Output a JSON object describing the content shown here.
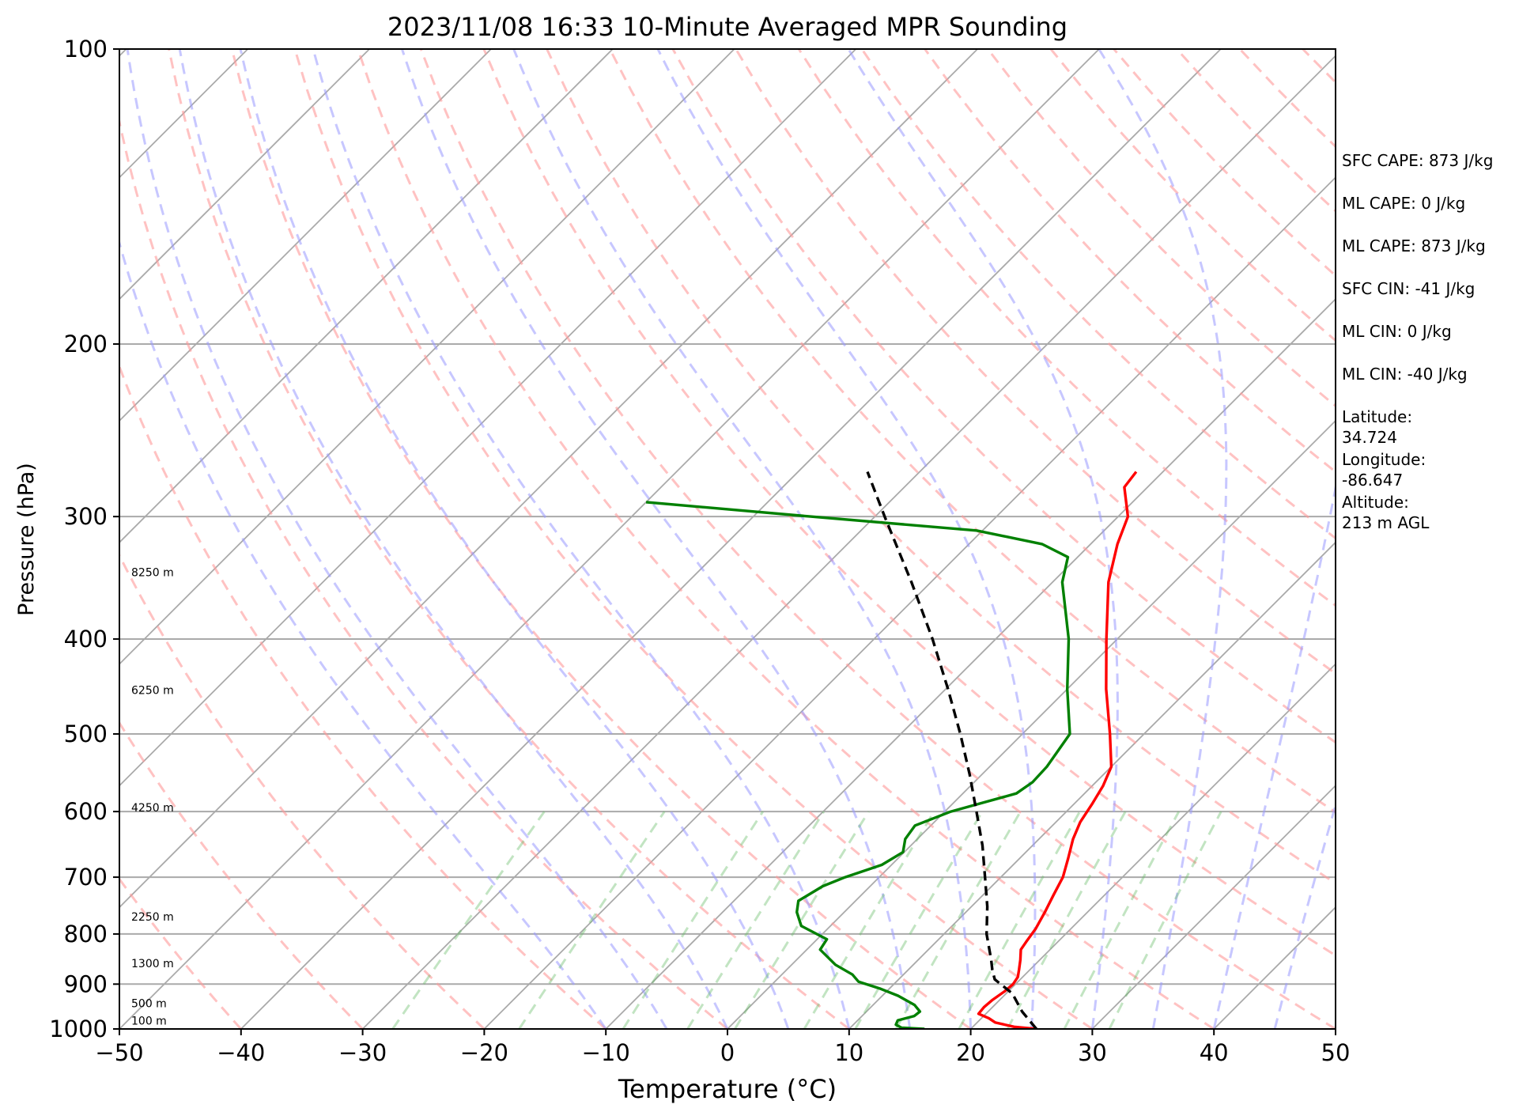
{
  "chart_data": {
    "type": "line",
    "subtype": "skew-T log-p sounding",
    "title": "2023/11/08 16:33 10-Minute Averaged MPR Sounding",
    "xlabel": "Temperature (°C)",
    "ylabel": "Pressure (hPa)",
    "xlim": [
      -50,
      50
    ],
    "ylim": [
      1000,
      100
    ],
    "y_scale": "log",
    "x_ticks": [
      "−50",
      "−40",
      "−30",
      "−20",
      "−10",
      "0",
      "10",
      "20",
      "30",
      "40",
      "50"
    ],
    "y_ticks": [
      "100",
      "200",
      "300",
      "400",
      "500",
      "600",
      "700",
      "800",
      "900",
      "1000"
    ],
    "grid": "horizontal isobars",
    "height_labels": [
      {
        "text": "100 m",
        "p": 990
      },
      {
        "text": "500 m",
        "p": 950
      },
      {
        "text": "1300 m",
        "p": 865
      },
      {
        "text": "2250 m",
        "p": 775
      },
      {
        "text": "4250 m",
        "p": 600
      },
      {
        "text": "6250 m",
        "p": 455
      },
      {
        "text": "8250 m",
        "p": 345
      }
    ],
    "info_lines": [
      [
        "SFC CAPE: 873 J/kg"
      ],
      [
        "ML CAPE: 0 J/kg"
      ],
      [
        "ML CAPE: 873 J/kg"
      ],
      [
        "SFC CIN: -41 J/kg"
      ],
      [
        "ML CIN: 0 J/kg"
      ],
      [
        "ML CIN: -40 J/kg"
      ],
      [
        "Latitude:",
        "34.724"
      ],
      [
        "Longitude:",
        "-86.647"
      ],
      [
        "Altitude:",
        "213 m AGL"
      ]
    ],
    "series": [
      {
        "id": "temperature",
        "color": "#ff0000",
        "style": "solid",
        "points": [
          [
            1000,
            25.4
          ],
          [
            995,
            23.4
          ],
          [
            985,
            21.5
          ],
          [
            975,
            20.6
          ],
          [
            965,
            19.4
          ],
          [
            950,
            19.3
          ],
          [
            935,
            19.4
          ],
          [
            915,
            19.7
          ],
          [
            900,
            19.8
          ],
          [
            885,
            19.6
          ],
          [
            870,
            19.1
          ],
          [
            850,
            18.4
          ],
          [
            830,
            17.6
          ],
          [
            815,
            17.4
          ],
          [
            790,
            17.1
          ],
          [
            760,
            16.5
          ],
          [
            730,
            15.8
          ],
          [
            700,
            15.1
          ],
          [
            670,
            14.0
          ],
          [
            640,
            12.8
          ],
          [
            615,
            12.0
          ],
          [
            590,
            11.5
          ],
          [
            565,
            10.9
          ],
          [
            540,
            10.0
          ],
          [
            500,
            7.2
          ],
          [
            450,
            3.2
          ],
          [
            400,
            -0.9
          ],
          [
            350,
            -5.4
          ],
          [
            320,
            -7.8
          ],
          [
            300,
            -9.2
          ],
          [
            280,
            -11.9
          ],
          [
            270,
            -12.2
          ]
        ]
      },
      {
        "id": "dewpoint",
        "color": "#008000",
        "style": "solid",
        "points": [
          [
            1000,
            16.2
          ],
          [
            997,
            14.2
          ],
          [
            990,
            13.5
          ],
          [
            980,
            13.3
          ],
          [
            970,
            14.3
          ],
          [
            960,
            14.4
          ],
          [
            945,
            13.4
          ],
          [
            925,
            11.3
          ],
          [
            910,
            9.3
          ],
          [
            895,
            6.9
          ],
          [
            880,
            5.8
          ],
          [
            860,
            3.6
          ],
          [
            830,
            1.1
          ],
          [
            810,
            0.8
          ],
          [
            785,
            -2.4
          ],
          [
            760,
            -3.9
          ],
          [
            740,
            -4.7
          ],
          [
            715,
            -3.9
          ],
          [
            700,
            -2.8
          ],
          [
            680,
            -0.8
          ],
          [
            660,
            -0.1
          ],
          [
            640,
            -1.0
          ],
          [
            620,
            -1.3
          ],
          [
            600,
            0.5
          ],
          [
            575,
            4.4
          ],
          [
            560,
            4.8
          ],
          [
            540,
            4.7
          ],
          [
            500,
            3.9
          ],
          [
            450,
            0.0
          ],
          [
            400,
            -4.0
          ],
          [
            350,
            -9.2
          ],
          [
            330,
            -10.8
          ],
          [
            320,
            -14.0
          ],
          [
            310,
            -20.5
          ],
          [
            300,
            -35.2
          ],
          [
            290,
            -50.0
          ]
        ]
      },
      {
        "id": "parcel",
        "color": "#000000",
        "style": "dashed",
        "points": [
          [
            1000,
            25.4
          ],
          [
            960,
            22.8
          ],
          [
            920,
            20.5
          ],
          [
            890,
            17.9
          ],
          [
            870,
            16.9
          ],
          [
            850,
            16.0
          ],
          [
            800,
            13.5
          ],
          [
            750,
            11.3
          ],
          [
            700,
            8.7
          ],
          [
            650,
            5.9
          ],
          [
            600,
            2.6
          ],
          [
            550,
            -1.0
          ],
          [
            500,
            -5.1
          ],
          [
            450,
            -9.8
          ],
          [
            400,
            -15.2
          ],
          [
            350,
            -21.6
          ],
          [
            300,
            -29.2
          ],
          [
            270,
            -34.3
          ]
        ]
      }
    ]
  }
}
